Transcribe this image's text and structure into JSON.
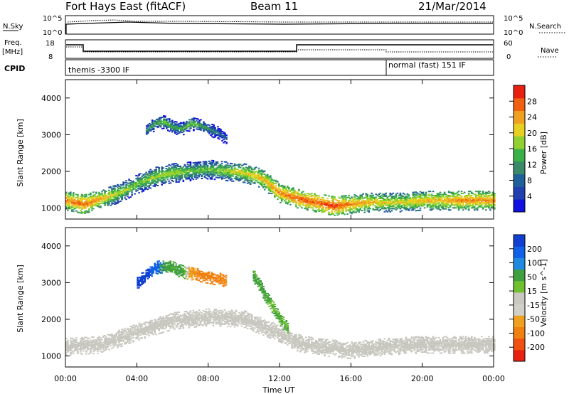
{
  "header": {
    "title": "Fort Hays East (fitACF)",
    "beam": "Beam 11",
    "date": "21/Mar/2014"
  },
  "top_panels": {
    "nsky_label": "N.Sky",
    "nsearch_label": "N.Search",
    "noise_ticks": [
      "10^5",
      "10^0"
    ],
    "freq_label": "Freq.",
    "freq_unit": "[MHz]",
    "freq_ticks": [
      "18",
      "8"
    ],
    "nave_label": "Nave",
    "nave_ticks": [
      "60",
      "0"
    ],
    "cpid_label": "CPID",
    "cpid_modes": [
      "themis -3300 IF",
      "normal (fast) 151 IF"
    ]
  },
  "colors": {
    "power_scale": [
      "#1010e0",
      "#2040b0",
      "#20609a",
      "#3a8a6a",
      "#3cb048",
      "#90d030",
      "#e8d020",
      "#f0a020",
      "#f06010",
      "#e82010"
    ],
    "velocity_scale": [
      "#1040d0",
      "#1060e8",
      "#208ae0",
      "#40a040",
      "#70c030",
      "#c8c8c0",
      "#d0d0c8",
      "#f0a020",
      "#f08010",
      "#f05010",
      "#e82010"
    ],
    "ground_scatter": "#c8c8c0"
  },
  "chart_data": [
    {
      "type": "heatmap",
      "panel": "power",
      "ylabel": "Slant Range [km]",
      "xlabel": "Time UT",
      "x_ticks": [
        "00:00",
        "04:00",
        "08:00",
        "12:00",
        "16:00",
        "20:00",
        "00:00"
      ],
      "xlim_hours": [
        0,
        24
      ],
      "ylim": [
        700,
        4500
      ],
      "y_ticks": [
        1000,
        2000,
        3000,
        4000
      ],
      "colorbar_label": "Power [dB]",
      "colorbar_ticks": [
        4,
        8,
        12,
        16,
        20,
        24,
        28
      ],
      "colorbar_range": [
        0,
        30
      ],
      "scatter_bands": [
        {
          "t": [
            0,
            1,
            2,
            3,
            4,
            5,
            6,
            7,
            8,
            9,
            10,
            11,
            12,
            13,
            14,
            15,
            16,
            17,
            18,
            19,
            20,
            21,
            22,
            23,
            24
          ],
          "range_center": [
            1200,
            1100,
            1250,
            1400,
            1650,
            1850,
            1950,
            2000,
            2050,
            2000,
            1950,
            1800,
            1400,
            1250,
            1150,
            1050,
            1100,
            1150,
            1150,
            1150,
            1200,
            1200,
            1200,
            1200,
            1200
          ],
          "power": [
            24,
            26,
            22,
            18,
            16,
            18,
            18,
            16,
            16,
            18,
            20,
            22,
            24,
            26,
            26,
            28,
            24,
            22,
            20,
            20,
            22,
            22,
            24,
            24,
            24
          ]
        },
        {
          "t": [
            4.5,
            5,
            5.5,
            6,
            6.5,
            7,
            7.5,
            8,
            8.5,
            9
          ],
          "range_center": [
            3100,
            3300,
            3350,
            3200,
            3150,
            3300,
            3250,
            3150,
            3050,
            2900
          ],
          "power": [
            12,
            14,
            16,
            14,
            14,
            16,
            14,
            12,
            10,
            8
          ]
        }
      ]
    },
    {
      "type": "heatmap",
      "panel": "velocity",
      "ylabel": "Slant Range [km]",
      "xlabel": "Time UT",
      "x_ticks": [
        "00:00",
        "04:00",
        "08:00",
        "12:00",
        "16:00",
        "20:00",
        "00:00"
      ],
      "xlim_hours": [
        0,
        24
      ],
      "ylim": [
        700,
        4500
      ],
      "y_ticks": [
        1000,
        2000,
        3000,
        4000
      ],
      "colorbar_label": "Velocity [m s^-1]",
      "colorbar_ticks": [
        200,
        100,
        50,
        15,
        -15,
        -50,
        -100,
        -200
      ],
      "scatter_bands": [
        {
          "t": [
            0,
            2,
            4,
            6,
            8,
            10,
            12,
            13,
            14,
            16,
            18,
            20,
            22,
            24
          ],
          "range_center": [
            1250,
            1300,
            1650,
            1950,
            2050,
            2000,
            1600,
            1350,
            1250,
            1150,
            1250,
            1300,
            1300,
            1300
          ],
          "velocity": [
            0,
            0,
            0,
            0,
            0,
            0,
            0,
            0,
            0,
            0,
            0,
            0,
            0,
            0
          ]
        },
        {
          "t": [
            4,
            4.5,
            5,
            5.5,
            6,
            6.5,
            7,
            7.5,
            8,
            8.5,
            9
          ],
          "range_center": [
            3000,
            3200,
            3400,
            3450,
            3400,
            3300,
            3250,
            3200,
            3150,
            3100,
            3050
          ],
          "velocity": [
            200,
            180,
            100,
            60,
            40,
            50,
            -40,
            -60,
            -80,
            -60,
            -50
          ]
        },
        {
          "t": [
            10.5,
            11,
            11.5,
            12,
            12.5
          ],
          "range_center": [
            3200,
            2800,
            2400,
            2000,
            1700
          ],
          "velocity": [
            40,
            40,
            30,
            30,
            30
          ]
        }
      ]
    }
  ]
}
